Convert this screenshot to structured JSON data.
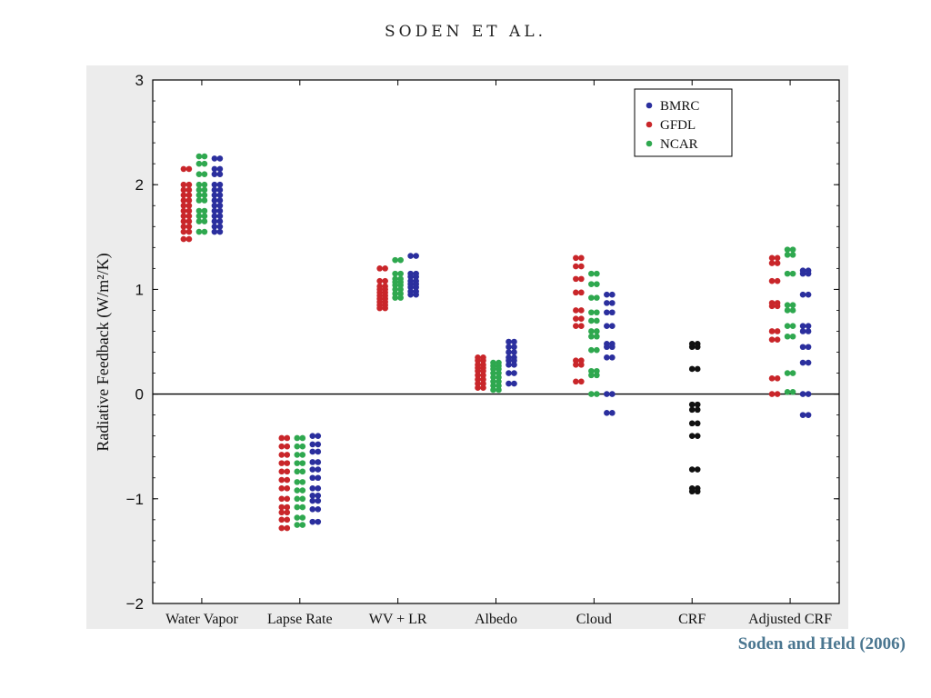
{
  "header": {
    "text": "SODEN ET AL."
  },
  "citation": {
    "text": "Soden and Held (2006)"
  },
  "colors": {
    "bmrc": "#2b2f9e",
    "gfdl": "#c9262a",
    "ncar": "#2fa84f",
    "crf": "#111111",
    "frame": "#000000"
  },
  "chart_data": {
    "type": "scatter",
    "title": "",
    "xlabel": "",
    "ylabel": "Radiative Feedback (W/m²/K)",
    "ylim": [
      -2,
      3
    ],
    "yticks": [
      -2,
      -1,
      0,
      1,
      2,
      3
    ],
    "ytick_labels": [
      "−2",
      "−1",
      "0",
      "1",
      "2",
      "3"
    ],
    "categories": [
      "Water Vapor",
      "Lapse Rate",
      "WV + LR",
      "Albedo",
      "Cloud",
      "CRF",
      "Adjusted CRF"
    ],
    "zero_line": true,
    "grid": false,
    "legend": {
      "position": "top-right",
      "entries": [
        "BMRC",
        "GFDL",
        "NCAR"
      ]
    },
    "series": [
      {
        "name": "GFDL",
        "values": [
          [
            2.15,
            2.0,
            1.95,
            1.9,
            1.85,
            1.8,
            1.75,
            1.7,
            1.65,
            1.6,
            1.55,
            1.48
          ],
          [
            -0.42,
            -0.5,
            -0.58,
            -0.66,
            -0.74,
            -0.82,
            -0.9,
            -1.0,
            -1.08,
            -1.13,
            -1.2,
            -1.28
          ],
          [
            1.2,
            1.08,
            1.03,
            1.0,
            0.97,
            0.94,
            0.91,
            0.88,
            0.85,
            0.82
          ],
          [
            0.35,
            0.32,
            0.28,
            0.25,
            0.22,
            0.18,
            0.14,
            0.1,
            0.06
          ],
          [
            1.3,
            1.22,
            1.1,
            0.97,
            0.8,
            0.72,
            0.65,
            0.32,
            0.28,
            0.12
          ],
          [],
          [
            1.3,
            1.25,
            1.08,
            0.87,
            0.84,
            0.6,
            0.52,
            0.15,
            0.0
          ]
        ]
      },
      {
        "name": "NCAR",
        "values": [
          [
            2.27,
            2.2,
            2.1,
            2.0,
            1.95,
            1.9,
            1.85,
            1.75,
            1.7,
            1.65,
            1.55
          ],
          [
            -0.42,
            -0.5,
            -0.58,
            -0.66,
            -0.74,
            -0.84,
            -0.92,
            -1.0,
            -1.08,
            -1.18,
            -1.25
          ],
          [
            1.28,
            1.15,
            1.1,
            1.07,
            1.04,
            1.0,
            0.96,
            0.92
          ],
          [
            0.3,
            0.27,
            0.24,
            0.2,
            0.16,
            0.12,
            0.08,
            0.04
          ],
          [
            1.15,
            1.05,
            0.92,
            0.78,
            0.7,
            0.6,
            0.55,
            0.42,
            0.22,
            0.18,
            0.0
          ],
          [],
          [
            1.38,
            1.33,
            1.15,
            0.85,
            0.8,
            0.65,
            0.55,
            0.2,
            0.02
          ]
        ]
      },
      {
        "name": "BMRC",
        "values": [
          [
            2.25,
            2.15,
            2.1,
            2.0,
            1.95,
            1.9,
            1.85,
            1.8,
            1.75,
            1.7,
            1.65,
            1.6,
            1.55
          ],
          [
            -0.4,
            -0.48,
            -0.55,
            -0.65,
            -0.72,
            -0.8,
            -0.9,
            -0.97,
            -1.02,
            -1.1,
            -1.22
          ],
          [
            1.32,
            1.15,
            1.12,
            1.08,
            1.05,
            1.02,
            0.98,
            0.95
          ],
          [
            0.5,
            0.45,
            0.4,
            0.35,
            0.32,
            0.28,
            0.2,
            0.1
          ],
          [
            0.95,
            0.87,
            0.78,
            0.65,
            0.48,
            0.45,
            0.35,
            0.0,
            -0.18
          ],
          [],
          [
            1.18,
            1.15,
            0.95,
            0.65,
            0.6,
            0.45,
            0.3,
            0.0,
            -0.2
          ]
        ]
      },
      {
        "name": "CRF",
        "values": [
          [],
          [],
          [],
          [],
          [],
          [
            0.48,
            0.45,
            0.24,
            -0.1,
            -0.15,
            -0.28,
            -0.4,
            -0.72,
            -0.9,
            -0.93
          ],
          []
        ]
      }
    ]
  }
}
